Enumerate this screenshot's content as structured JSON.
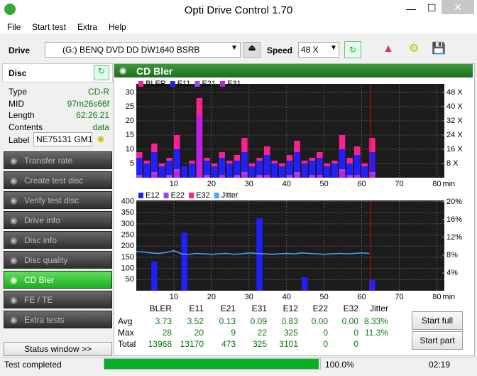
{
  "window": {
    "title": "Opti Drive Control 1.70"
  },
  "menu": [
    "File",
    "Start test",
    "Extra",
    "Help"
  ],
  "toolbar": {
    "drive_label": "Drive",
    "drive": "(G:)  BENQ DVD DD DW1640 BSRB",
    "speed_label": "Speed",
    "speed": "48 X"
  },
  "disc": {
    "title": "Disc",
    "fields": [
      [
        "Type",
        "CD-R"
      ],
      [
        "MID",
        "97m26s66f"
      ],
      [
        "Length",
        "62:26.21"
      ],
      [
        "Contents",
        "data"
      ]
    ],
    "label_name": "Label",
    "label_value": "NE75131 GM1"
  },
  "nav": {
    "items": [
      "Transfer rate",
      "Create test disc",
      "Verify test disc",
      "Drive info",
      "Disc info",
      "Disc quality",
      "CD Bler",
      "FE / TE",
      "Extra tests"
    ],
    "active": 6
  },
  "status_window": "Status window >>",
  "panel_title": "CD Bler",
  "chart_data": [
    {
      "type": "bar",
      "x_unit": "min",
      "x": [
        0,
        2,
        4,
        6,
        8,
        10,
        12,
        14,
        16,
        18,
        20,
        22,
        24,
        26,
        28,
        30,
        32,
        34,
        36,
        38,
        40,
        42,
        44,
        46,
        48,
        50,
        52,
        54,
        56,
        58,
        60,
        62
      ],
      "series": [
        {
          "name": "BLER",
          "color": "#ff2090",
          "values": [
            9,
            6,
            12,
            5,
            7,
            15,
            4,
            6,
            28,
            7,
            5,
            9,
            6,
            8,
            14,
            5,
            7,
            11,
            6,
            5,
            8,
            13,
            6,
            7,
            9,
            5,
            6,
            15,
            7,
            11,
            5,
            14
          ]
        },
        {
          "name": "E11",
          "color": "#2020ff",
          "values": [
            7,
            5,
            9,
            4,
            6,
            10,
            4,
            5,
            20,
            6,
            4,
            7,
            5,
            6,
            9,
            4,
            6,
            8,
            5,
            4,
            6,
            9,
            5,
            6,
            7,
            4,
            5,
            10,
            5,
            8,
            4,
            9
          ]
        },
        {
          "name": "E21",
          "color": "#a040ff",
          "values": [
            1,
            0,
            2,
            0,
            1,
            3,
            0,
            0,
            9,
            1,
            0,
            1,
            0,
            1,
            2,
            0,
            1,
            1,
            0,
            0,
            1,
            2,
            0,
            1,
            1,
            0,
            0,
            3,
            1,
            1,
            0,
            2
          ]
        },
        {
          "name": "E31",
          "color": "#c020e0",
          "values": [
            0,
            0,
            1,
            0,
            0,
            2,
            0,
            0,
            22,
            0,
            0,
            1,
            0,
            0,
            1,
            0,
            0,
            1,
            0,
            0,
            0,
            1,
            0,
            0,
            1,
            0,
            0,
            2,
            0,
            1,
            0,
            1
          ]
        }
      ],
      "xlim": [
        0,
        82
      ],
      "xticks": [
        10,
        20,
        30,
        40,
        50,
        60,
        70,
        80
      ],
      "ylim": [
        0,
        33
      ],
      "yticks": [
        5,
        10,
        15,
        20,
        25,
        30
      ],
      "y2lim": [
        0,
        52.8
      ],
      "y2ticks": [
        {
          "value": 8,
          "label": "8 X"
        },
        {
          "value": 16,
          "label": "16 X"
        },
        {
          "value": 24,
          "label": "24 X"
        },
        {
          "value": 32,
          "label": "32 X"
        },
        {
          "value": 40,
          "label": "40 X"
        },
        {
          "value": 48,
          "label": "48 X"
        }
      ],
      "end_marker": 62.4,
      "grid": true
    },
    {
      "type": "bar",
      "x_unit": "min",
      "x": [
        0,
        2,
        4,
        6,
        8,
        10,
        12,
        14,
        16,
        18,
        20,
        22,
        24,
        26,
        28,
        30,
        32,
        34,
        36,
        38,
        40,
        42,
        44,
        46,
        48,
        50,
        52,
        54,
        56,
        58,
        60,
        62
      ],
      "series": [
        {
          "name": "E12",
          "color": "#2020ff",
          "values": [
            0,
            0,
            130,
            0,
            0,
            0,
            260,
            0,
            0,
            0,
            0,
            0,
            0,
            0,
            0,
            0,
            325,
            0,
            0,
            0,
            0,
            0,
            60,
            0,
            0,
            0,
            0,
            0,
            0,
            0,
            0,
            50
          ]
        },
        {
          "name": "E22",
          "color": "#a040ff",
          "values": [
            0,
            0,
            0,
            0,
            0,
            0,
            0,
            0,
            0,
            0,
            0,
            0,
            0,
            0,
            0,
            0,
            0,
            0,
            0,
            0,
            0,
            0,
            0,
            0,
            0,
            0,
            0,
            0,
            0,
            0,
            0,
            0
          ]
        },
        {
          "name": "E32",
          "color": "#ff2090",
          "values": [
            0,
            0,
            0,
            0,
            0,
            0,
            0,
            0,
            0,
            0,
            0,
            0,
            0,
            0,
            0,
            0,
            0,
            0,
            0,
            0,
            0,
            0,
            0,
            0,
            0,
            0,
            0,
            0,
            0,
            0,
            0,
            0
          ]
        },
        {
          "name": "Jitter",
          "color": "#4da6ff",
          "axis": "y2",
          "line": true,
          "values": [
            8.8,
            8.7,
            8.5,
            8.4,
            8.6,
            9.0,
            8.3,
            8.2,
            8.4,
            8.3,
            8.2,
            8.3,
            8.4,
            8.2,
            8.3,
            8.5,
            8.4,
            8.3,
            8.2,
            8.3,
            8.4,
            8.3,
            8.5,
            8.4,
            8.3,
            8.2,
            8.3,
            8.4,
            8.3,
            8.4,
            8.5,
            8.4
          ]
        }
      ],
      "xlim": [
        0,
        82
      ],
      "xticks": [
        10,
        20,
        30,
        40,
        50,
        60,
        70,
        80
      ],
      "ylim": [
        0,
        405
      ],
      "yticks": [
        50,
        100,
        150,
        200,
        250,
        300,
        350,
        400
      ],
      "y2lim": [
        0,
        20.3
      ],
      "y2ticks": [
        {
          "value": 4,
          "label": "4%"
        },
        {
          "value": 8,
          "label": "8%"
        },
        {
          "value": 12,
          "label": "12%"
        },
        {
          "value": 16,
          "label": "16%"
        },
        {
          "value": 20,
          "label": "20%"
        }
      ],
      "end_marker": 62.4,
      "grid": true
    }
  ],
  "stats": {
    "columns": [
      "BLER",
      "E11",
      "E21",
      "E31",
      "E12",
      "E22",
      "E32",
      "Jitter"
    ],
    "rows": [
      {
        "name": "Avg",
        "cells": [
          "3.73",
          "3.52",
          "0.13",
          "0.09",
          "0.83",
          "0.00",
          "0.00",
          "8.33%"
        ]
      },
      {
        "name": "Max",
        "cells": [
          "28",
          "20",
          "9",
          "22",
          "325",
          "0",
          "0",
          "11.3%"
        ]
      },
      {
        "name": "Total",
        "cells": [
          "13968",
          "13170",
          "473",
          "325",
          "3101",
          "0",
          "0"
        ]
      }
    ]
  },
  "buttons": [
    "Start full",
    "Start part"
  ],
  "status": {
    "text": "Test completed",
    "progress": {
      "value": 100,
      "label": "100.0%"
    },
    "time": "02:19"
  }
}
